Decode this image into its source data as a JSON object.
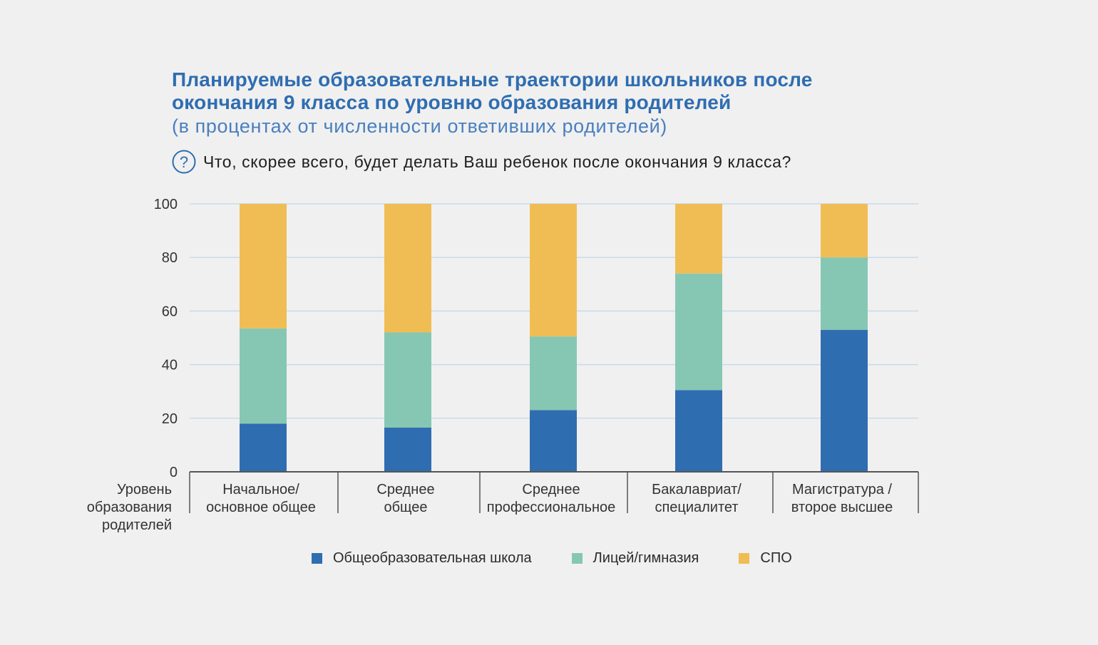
{
  "header": {
    "title_line1": "Планируемые образовательные траектории школьников после",
    "title_line2": "окончания 9 класса по уровню образования родителей",
    "subtitle": "(в процентах от численности ответивших родителей)",
    "question_icon": "question-circle-icon",
    "question": "Что, скорее всего, будет делать Ваш ребенок после окончания 9 класса?"
  },
  "colors": {
    "title": "#2f6db1",
    "school": "#2f6db1",
    "lyceum": "#86c7b4",
    "spo": "#f0bd55",
    "grid": "#c7dcea",
    "axis": "#555555"
  },
  "chart_data": {
    "type": "bar",
    "stacked": true,
    "x_axis_title": [
      "Уровень",
      "образования",
      "родителей"
    ],
    "categories": [
      [
        "Начальное/",
        "основное общее"
      ],
      [
        "Среднее",
        "общее"
      ],
      [
        "Среднее",
        "профессиональное"
      ],
      [
        "Бакалавриат/",
        "специалитет"
      ],
      [
        "Магистратура /",
        "второе высшее"
      ]
    ],
    "series": [
      {
        "name": "Общеобразовательная школа",
        "color": "#2f6db1",
        "values": [
          18,
          16.5,
          23,
          30.5,
          53
        ]
      },
      {
        "name": "Лицей/гимназия",
        "color": "#86c7b4",
        "values": [
          35.5,
          35.5,
          27.5,
          43.5,
          27
        ]
      },
      {
        "name": "СПО",
        "color": "#f0bd55",
        "values": [
          46.5,
          48,
          49.5,
          26,
          20
        ]
      }
    ],
    "ylim": [
      0,
      100
    ],
    "yticks": [
      "0",
      "20",
      "40",
      "60",
      "80",
      "100"
    ],
    "grid": true,
    "legend": "bottom"
  }
}
